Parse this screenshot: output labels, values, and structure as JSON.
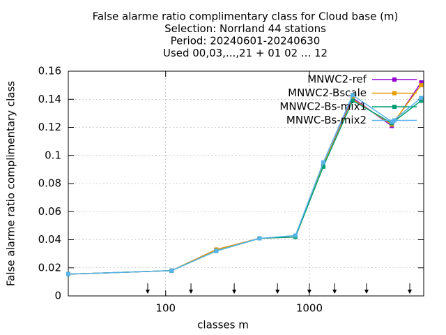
{
  "chart_data": {
    "type": "line",
    "title": [
      "False alarme ratio complimentary class  for Cloud base (m)",
      "Selection: Norrland     44 stations",
      "Period: 20240601-20240630",
      "Used 00,03,...,21 + 01 02 ... 12"
    ],
    "xlabel": "classes m",
    "ylabel": "False alarme ratio complimentary class",
    "x": [
      21,
      110,
      225,
      450,
      800,
      1250,
      2000,
      3750,
      6000
    ],
    "xscale": "log",
    "xlim": [
      21,
      6250
    ],
    "xticks": [
      100,
      1000
    ],
    "ylim": [
      0,
      0.16
    ],
    "yticks": [
      0,
      0.02,
      0.04,
      0.06,
      0.08,
      0.1,
      0.12,
      0.14,
      0.16
    ],
    "grid": true,
    "legend": "top-right",
    "arrows": [
      75,
      150,
      300,
      600,
      1000,
      1500,
      2500,
      5000
    ],
    "series": [
      {
        "name": "MNWC2-ref",
        "color": "#9400d3",
        "values": [
          0.0155,
          0.018,
          0.033,
          0.041,
          0.042,
          0.093,
          0.141,
          0.121,
          0.152
        ]
      },
      {
        "name": "MNWC2-Bscale",
        "color": "#e69f00",
        "values": [
          0.0155,
          0.018,
          0.033,
          0.041,
          0.042,
          0.093,
          0.14,
          0.122,
          0.15
        ]
      },
      {
        "name": "MNWC2-Bs-mix1",
        "color": "#009e73",
        "values": [
          0.0155,
          0.018,
          0.032,
          0.041,
          0.042,
          0.092,
          0.139,
          0.123,
          0.139
        ]
      },
      {
        "name": "MNWC-Bs-mix2",
        "color": "#56b4e9",
        "values": [
          0.0155,
          0.018,
          0.032,
          0.041,
          0.043,
          0.095,
          0.143,
          0.124,
          0.141
        ]
      }
    ]
  }
}
